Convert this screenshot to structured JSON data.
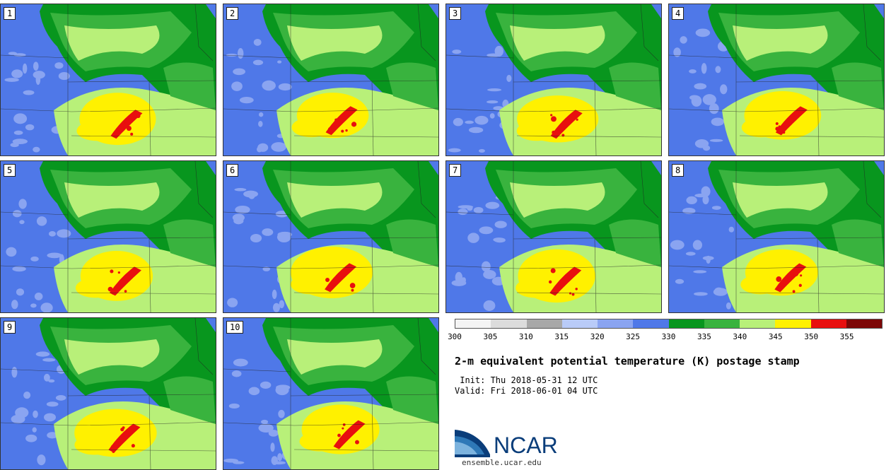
{
  "panels": [
    {
      "label": "1"
    },
    {
      "label": "2"
    },
    {
      "label": "3"
    },
    {
      "label": "4"
    },
    {
      "label": "5"
    },
    {
      "label": "6"
    },
    {
      "label": "7"
    },
    {
      "label": "8"
    },
    {
      "label": "9"
    },
    {
      "label": "10"
    }
  ],
  "colorbar": {
    "ticks": [
      "300",
      "305",
      "310",
      "315",
      "320",
      "325",
      "330",
      "335",
      "340",
      "345",
      "350",
      "355"
    ],
    "colors": [
      "#f4f4f4",
      "#dcdcdc",
      "#a8a8a8",
      "#b9cbf8",
      "#8aa4f1",
      "#4f78e8",
      "#08961e",
      "#39b33e",
      "#b8f079",
      "#fff100",
      "#e80f0f",
      "#7d0707"
    ]
  },
  "title": "2-m equivalent potential temperature (K) postage stamp",
  "init": " Init: Thu 2018-05-31 12 UTC",
  "valid": "Valid: Fri 2018-06-01 04 UTC",
  "logo": {
    "text": "NCAR",
    "url": "ensemble.ucar.edu"
  }
}
